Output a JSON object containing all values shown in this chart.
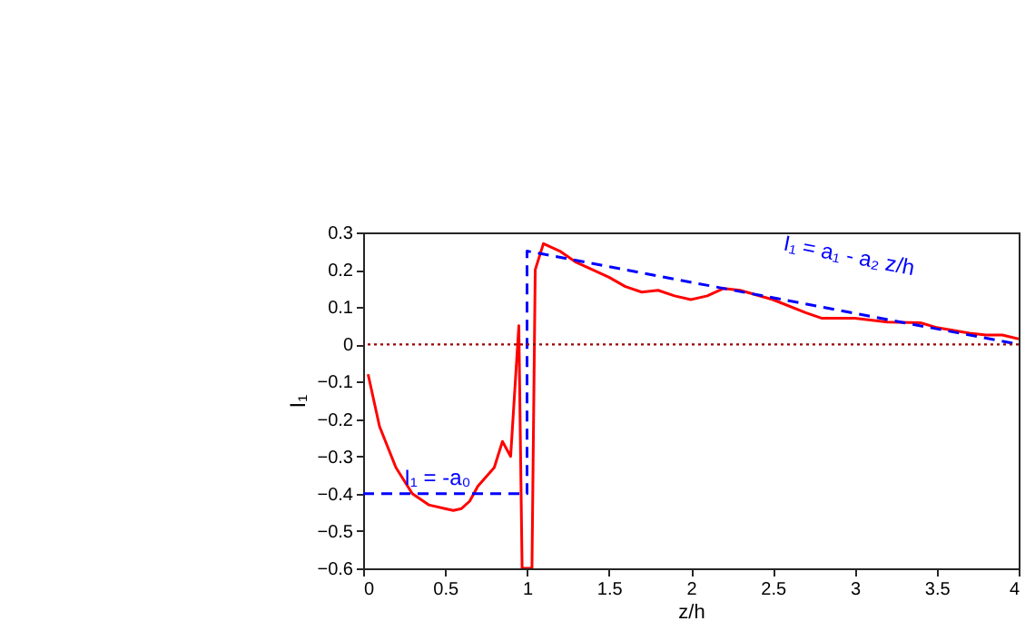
{
  "chart_data": {
    "type": "line",
    "xlabel": "z/h",
    "ylabel": "I₁",
    "xlim": [
      0,
      4
    ],
    "ylim": [
      -0.6,
      0.3
    ],
    "xticks": [
      0,
      0.5,
      1,
      1.5,
      2,
      2.5,
      3,
      3.5,
      4
    ],
    "yticks": [
      -0.6,
      -0.5,
      -0.4,
      -0.3,
      -0.2,
      -0.1,
      0,
      0.1,
      0.2,
      0.3
    ],
    "grid": false,
    "series": [
      {
        "color": "#ff0000",
        "line_style": "solid",
        "x": [
          0.03,
          0.1,
          0.2,
          0.3,
          0.4,
          0.5,
          0.55,
          0.6,
          0.65,
          0.7,
          0.8,
          0.85,
          0.9,
          0.95,
          0.97,
          1.03,
          1.05,
          1.1,
          1.2,
          1.3,
          1.4,
          1.5,
          1.6,
          1.7,
          1.8,
          1.9,
          2.0,
          2.1,
          2.2,
          2.3,
          2.5,
          2.7,
          2.8,
          3.0,
          3.2,
          3.4,
          3.5,
          3.7,
          3.8,
          3.9,
          4.0
        ],
        "values": [
          -0.08,
          -0.22,
          -0.33,
          -0.4,
          -0.43,
          -0.44,
          -0.445,
          -0.44,
          -0.42,
          -0.38,
          -0.33,
          -0.26,
          -0.3,
          0.05,
          -0.6,
          -0.6,
          0.2,
          0.27,
          0.25,
          0.22,
          0.2,
          0.18,
          0.155,
          0.14,
          0.145,
          0.13,
          0.12,
          0.13,
          0.15,
          0.145,
          0.12,
          0.085,
          0.07,
          0.07,
          0.06,
          0.058,
          0.045,
          0.03,
          0.025,
          0.025,
          0.015
        ]
      },
      {
        "color": "#0000ff",
        "line_style": "dashed",
        "x": [
          0,
          1,
          1,
          4
        ],
        "values": [
          -0.4,
          -0.4,
          0.25,
          0
        ]
      }
    ],
    "ref_lines": [
      {
        "axis": "y",
        "value": 0,
        "color": "#990000",
        "line_style": "dotted"
      }
    ],
    "annotations": [
      {
        "text": "I₁ = -a₀",
        "x": 0.25,
        "y": -0.4
      },
      {
        "text": "I₁ = a₁ - a₂ z/h",
        "x": 2.9,
        "y": 0.09
      }
    ]
  }
}
